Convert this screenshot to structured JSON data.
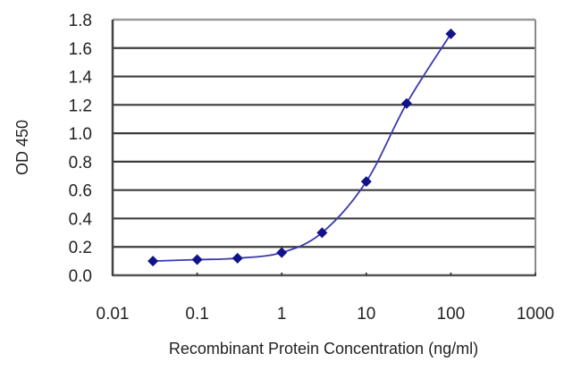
{
  "chart_data": {
    "type": "line",
    "title": "",
    "xlabel": "Recombinant Protein Concentration (ng/ml)",
    "ylabel": "OD 450",
    "xscale": "log",
    "xlim": [
      0.01,
      1000
    ],
    "ylim": [
      0.0,
      1.8
    ],
    "x_ticks": [
      "0.01",
      "0.1",
      "1",
      "10",
      "100",
      "1000"
    ],
    "y_ticks": [
      "0.0",
      "0.2",
      "0.4",
      "0.6",
      "0.8",
      "1.0",
      "1.2",
      "1.4",
      "1.6",
      "1.8"
    ],
    "grid": {
      "horizontal": true,
      "vertical": false
    },
    "legend": null,
    "series": [
      {
        "name": "OD 450",
        "color": "#1f1f9e",
        "marker": "diamond",
        "x": [
          0.03,
          0.1,
          0.3,
          1,
          3,
          10,
          30,
          100
        ],
        "values": [
          0.1,
          0.11,
          0.12,
          0.16,
          0.3,
          0.66,
          1.21,
          1.7
        ]
      }
    ]
  },
  "colors": {
    "line": "#3a3ab0",
    "marker": "#12128a",
    "grid": "#3c3c3c",
    "frame": "#6e6e6e"
  }
}
